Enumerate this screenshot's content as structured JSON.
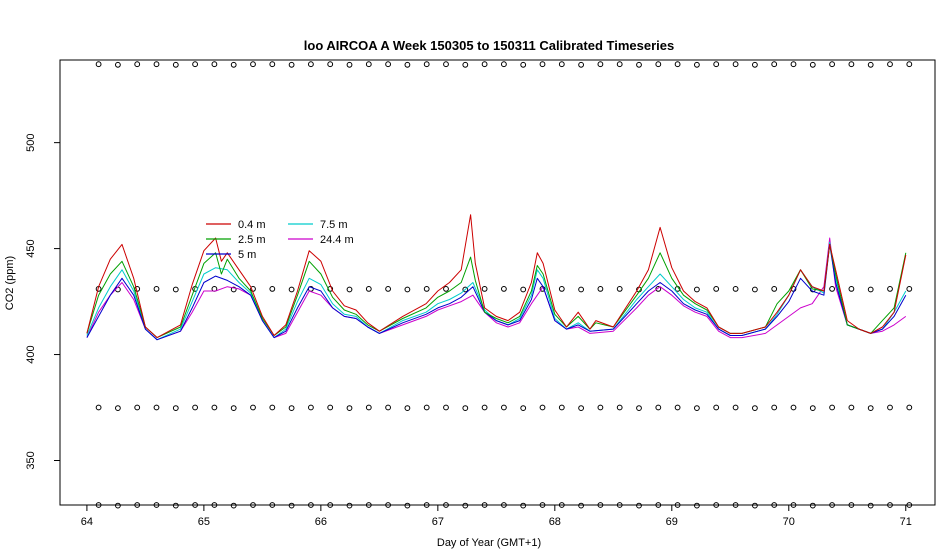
{
  "chart_data": {
    "type": "line",
    "title": "loo AIRCOA A  Week 150305 to 150311  Calibrated Timeseries",
    "xlabel": "Day of Year (GMT+1)",
    "ylabel": "CO2 (ppm)",
    "xlim": [
      63.77,
      71.25
    ],
    "ylim": [
      329,
      539
    ],
    "xticks": [
      64,
      65,
      66,
      67,
      68,
      69,
      70,
      71
    ],
    "yticks": [
      350,
      400,
      450,
      500
    ],
    "grid": false,
    "legend_position": "upper-left",
    "legend_entries": [
      "0.4 m",
      "2.5 m",
      "5 m",
      "7.5 m",
      "24.4 m"
    ],
    "colors": {
      "0.4 m": "#cc0000",
      "2.5 m": "#00a000",
      "5 m": "#0000cc",
      "7.5 m": "#00cccc",
      "24.4 m": "#cc00cc"
    },
    "series": [
      {
        "name": "0.4 m",
        "x": [
          64.0,
          64.1,
          64.2,
          64.3,
          64.4,
          64.5,
          64.6,
          64.8,
          64.9,
          65.0,
          65.1,
          65.15,
          65.2,
          65.3,
          65.4,
          65.5,
          65.6,
          65.7,
          65.8,
          65.9,
          66.0,
          66.1,
          66.2,
          66.3,
          66.4,
          66.5,
          66.7,
          66.9,
          67.0,
          67.1,
          67.2,
          67.28,
          67.32,
          67.4,
          67.5,
          67.6,
          67.7,
          67.8,
          67.85,
          67.9,
          68.0,
          68.1,
          68.2,
          68.3,
          68.35,
          68.5,
          68.7,
          68.8,
          68.9,
          69.0,
          69.1,
          69.2,
          69.3,
          69.4,
          69.5,
          69.6,
          69.8,
          69.9,
          70.0,
          70.1,
          70.2,
          70.3,
          70.35,
          70.4,
          70.5,
          70.6,
          70.7,
          70.8,
          70.9,
          71.0
        ],
        "y": [
          410,
          432,
          445,
          452,
          436,
          413,
          408,
          414,
          433,
          449,
          455,
          444,
          448,
          440,
          432,
          418,
          409,
          414,
          430,
          449,
          444,
          430,
          423,
          421,
          415,
          411,
          418,
          424,
          430,
          434,
          440,
          466,
          443,
          422,
          418,
          416,
          420,
          434,
          448,
          443,
          421,
          413,
          420,
          412,
          416,
          413,
          430,
          440,
          460,
          441,
          430,
          425,
          422,
          413,
          410,
          410,
          413,
          420,
          428,
          440,
          432,
          430,
          452,
          440,
          416,
          412,
          410,
          413,
          420,
          447
        ]
      },
      {
        "name": "2.5 m",
        "x": [
          64.0,
          64.1,
          64.2,
          64.3,
          64.4,
          64.5,
          64.6,
          64.8,
          64.9,
          65.0,
          65.1,
          65.15,
          65.2,
          65.3,
          65.4,
          65.5,
          65.6,
          65.7,
          65.8,
          65.9,
          66.0,
          66.1,
          66.2,
          66.3,
          66.4,
          66.5,
          66.7,
          66.9,
          67.0,
          67.1,
          67.2,
          67.28,
          67.32,
          67.4,
          67.5,
          67.6,
          67.7,
          67.8,
          67.85,
          67.9,
          68.0,
          68.1,
          68.2,
          68.3,
          68.35,
          68.5,
          68.7,
          68.8,
          68.9,
          69.0,
          69.1,
          69.2,
          69.3,
          69.4,
          69.5,
          69.6,
          69.8,
          69.9,
          70.0,
          70.1,
          70.2,
          70.3,
          70.35,
          70.4,
          70.5,
          70.6,
          70.7,
          70.8,
          70.9,
          71.0
        ],
        "y": [
          410,
          428,
          438,
          444,
          432,
          413,
          408,
          413,
          428,
          443,
          448,
          438,
          445,
          436,
          430,
          417,
          409,
          413,
          428,
          444,
          438,
          427,
          421,
          419,
          414,
          411,
          417,
          422,
          427,
          430,
          434,
          446,
          435,
          420,
          417,
          415,
          418,
          430,
          442,
          438,
          419,
          413,
          418,
          412,
          415,
          413,
          428,
          436,
          448,
          436,
          428,
          424,
          421,
          413,
          410,
          410,
          413,
          424,
          430,
          440,
          431,
          430,
          452,
          438,
          414,
          412,
          410,
          416,
          422,
          448
        ]
      },
      {
        "name": "5 m",
        "x": [
          64.0,
          64.1,
          64.2,
          64.3,
          64.4,
          64.5,
          64.6,
          64.8,
          64.9,
          65.0,
          65.1,
          65.2,
          65.3,
          65.4,
          65.5,
          65.6,
          65.7,
          65.8,
          65.9,
          66.0,
          66.1,
          66.2,
          66.3,
          66.4,
          66.5,
          66.7,
          66.9,
          67.0,
          67.1,
          67.2,
          67.3,
          67.4,
          67.5,
          67.6,
          67.7,
          67.8,
          67.85,
          67.9,
          68.0,
          68.1,
          68.2,
          68.3,
          68.5,
          68.7,
          68.8,
          68.9,
          69.0,
          69.1,
          69.2,
          69.3,
          69.4,
          69.5,
          69.6,
          69.8,
          69.9,
          70.0,
          70.1,
          70.2,
          70.3,
          70.35,
          70.4,
          70.5,
          70.6,
          70.7,
          70.8,
          70.9,
          71.0
        ],
        "y": [
          408,
          418,
          428,
          436,
          428,
          412,
          407,
          411,
          422,
          434,
          437,
          435,
          432,
          428,
          416,
          408,
          411,
          422,
          432,
          430,
          422,
          418,
          417,
          413,
          410,
          415,
          419,
          422,
          424,
          427,
          432,
          420,
          416,
          414,
          416,
          426,
          436,
          432,
          416,
          412,
          414,
          411,
          412,
          424,
          430,
          434,
          430,
          424,
          421,
          419,
          412,
          409,
          409,
          412,
          418,
          425,
          436,
          430,
          428,
          452,
          434,
          414,
          412,
          410,
          412,
          418,
          428
        ]
      },
      {
        "name": "7.5 m",
        "x": [
          64.0,
          64.1,
          64.2,
          64.3,
          64.4,
          64.5,
          64.6,
          64.8,
          64.9,
          65.0,
          65.1,
          65.2,
          65.3,
          65.4,
          65.5,
          65.6,
          65.7,
          65.8,
          65.9,
          66.0,
          66.1,
          66.2,
          66.3,
          66.4,
          66.5,
          66.7,
          66.9,
          67.0,
          67.1,
          67.2,
          67.3,
          67.4,
          67.5,
          67.6,
          67.7,
          67.8,
          67.85,
          67.9,
          68.0,
          68.1,
          68.2,
          68.3,
          68.5,
          68.7,
          68.8,
          68.9,
          69.0,
          69.1,
          69.2,
          69.3,
          69.4,
          69.5,
          69.6,
          69.8,
          69.9,
          70.0,
          70.1,
          70.2,
          70.3,
          70.35,
          70.4,
          70.5,
          70.6,
          70.7,
          70.8,
          70.9,
          71.0
        ],
        "y": [
          409,
          422,
          432,
          440,
          430,
          412,
          407,
          412,
          425,
          438,
          441,
          440,
          434,
          429,
          416,
          408,
          412,
          425,
          436,
          433,
          424,
          419,
          418,
          413,
          410,
          416,
          420,
          424,
          426,
          429,
          434,
          421,
          416,
          414,
          417,
          428,
          440,
          436,
          417,
          412,
          415,
          411,
          412,
          426,
          432,
          438,
          432,
          426,
          422,
          420,
          412,
          409,
          409,
          412,
          419,
          428,
          440,
          432,
          429,
          453,
          436,
          414,
          412,
          410,
          412,
          420,
          430
        ]
      },
      {
        "name": "24.4 m",
        "x": [
          64.0,
          64.1,
          64.2,
          64.3,
          64.4,
          64.5,
          64.6,
          64.8,
          64.9,
          65.0,
          65.1,
          65.2,
          65.3,
          65.4,
          65.5,
          65.6,
          65.7,
          65.8,
          65.9,
          66.0,
          66.1,
          66.2,
          66.3,
          66.4,
          66.5,
          66.7,
          66.9,
          67.0,
          67.1,
          67.2,
          67.3,
          67.4,
          67.5,
          67.6,
          67.7,
          67.8,
          67.9,
          68.0,
          68.1,
          68.2,
          68.3,
          68.5,
          68.7,
          68.8,
          68.9,
          69.0,
          69.1,
          69.2,
          69.3,
          69.4,
          69.5,
          69.6,
          69.8,
          69.9,
          70.0,
          70.1,
          70.2,
          70.3,
          70.35,
          70.4,
          70.5,
          70.6,
          70.7,
          70.8,
          70.9,
          71.0
        ],
        "y": [
          408,
          420,
          428,
          434,
          426,
          412,
          407,
          411,
          420,
          430,
          430,
          432,
          431,
          428,
          416,
          408,
          410,
          420,
          430,
          428,
          422,
          418,
          417,
          413,
          410,
          414,
          418,
          421,
          423,
          425,
          428,
          420,
          415,
          413,
          415,
          424,
          432,
          416,
          412,
          413,
          410,
          411,
          422,
          428,
          432,
          428,
          423,
          420,
          418,
          411,
          408,
          408,
          410,
          414,
          418,
          422,
          424,
          432,
          455,
          432,
          414,
          412,
          410,
          411,
          414,
          418
        ]
      }
    ],
    "reference_markers": {
      "shape": "open-circle",
      "rows_y": [
        537,
        431,
        375,
        329
      ],
      "x_start": 64.1,
      "x_end": 71.0,
      "step": 0.165
    }
  }
}
